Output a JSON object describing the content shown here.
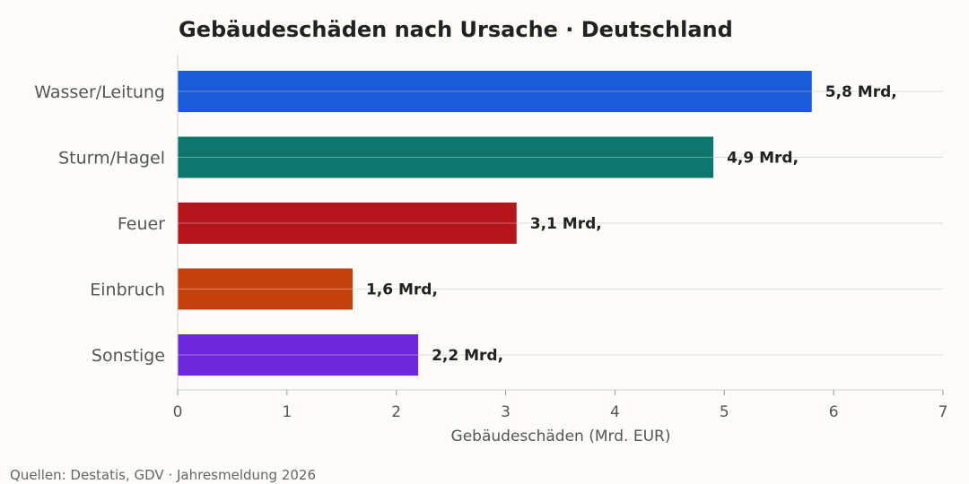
{
  "chart_data": {
    "type": "bar",
    "orientation": "horizontal",
    "title": "Gebäudeschäden nach Ursache · Deutschland",
    "xlabel": "Gebäudeschäden (Mrd. EUR)",
    "ylabel": "",
    "xlim": [
      0,
      7
    ],
    "xticks": [
      "0",
      "1",
      "2",
      "3",
      "4",
      "5",
      "6",
      "7"
    ],
    "grid": "horizontal",
    "categories": [
      "Wasser/Leitung",
      "Sturm/Hagel",
      "Feuer",
      "Einbruch",
      "Sonstige"
    ],
    "values": [
      5.8,
      4.9,
      3.1,
      1.6,
      2.2
    ],
    "value_labels": [
      "5,8 Mrd,",
      "4,9 Mrd,",
      "3,1 Mrd,",
      "1,6 Mrd,",
      "2,2 Mrd,"
    ],
    "colors": [
      "#1b5ad8",
      "#0f766e",
      "#b5161e",
      "#c2410c",
      "#6d28d9"
    ],
    "source": "Quellen: Destatis, GDV · Jahresmeldung 2026"
  }
}
